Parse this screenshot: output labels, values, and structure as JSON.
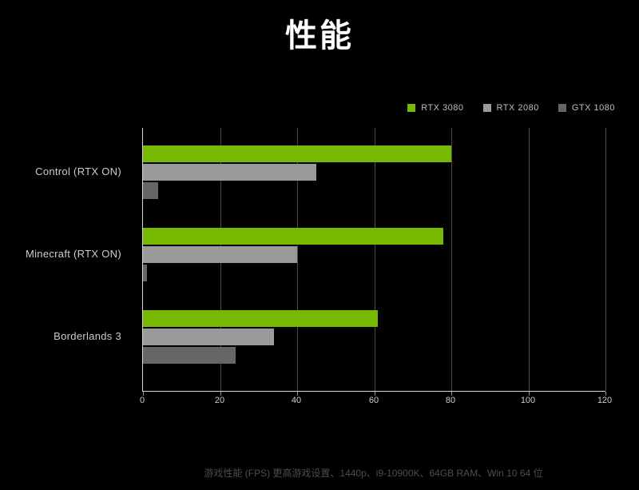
{
  "title": "性能",
  "footnote": "游戏性能 (FPS) 更高游戏设置、1440p、i9-10900K、64GB RAM、Win 10 64 位",
  "colors": {
    "background": "#000000",
    "title_text": "#ffffff",
    "nvidia_green": "#76b900",
    "rtx2080_gray": "#9a9a9a",
    "gtx1080_gray": "#666666",
    "axis_line": "#d9d9d9",
    "gridline": "#4a4a4a",
    "tick_label": "#cccccc",
    "category_label": "#cccccc",
    "legend_label": "#bfbfbf",
    "footnote_text": "#4d4d4d"
  },
  "chart_data": {
    "type": "bar",
    "orientation": "horizontal",
    "title": "性能",
    "categories": [
      "Control (RTX ON)",
      "Minecraft (RTX ON)",
      "Borderlands 3"
    ],
    "series": [
      {
        "name": "RTX 3080",
        "color": "#76b900",
        "values": [
          80,
          78,
          61
        ]
      },
      {
        "name": "RTX 2080",
        "color": "#9a9a9a",
        "values": [
          45,
          40,
          34
        ]
      },
      {
        "name": "GTX 1080",
        "color": "#666666",
        "values": [
          4,
          1,
          24
        ]
      }
    ],
    "xlabel": "",
    "ylabel": "",
    "xlim": [
      0,
      120
    ],
    "xticks": [
      0,
      20,
      40,
      60,
      80,
      100,
      120
    ],
    "grid": true,
    "legend_position": "top-right"
  }
}
